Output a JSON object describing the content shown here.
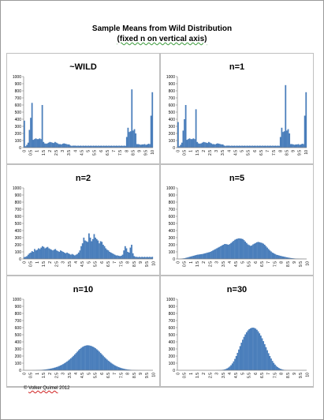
{
  "header": {
    "title": "Sample Means from Wild Distribution",
    "subtitle": "(fixed n on vertical axis)"
  },
  "footer": {
    "copyright_prefix": "© ",
    "copyright_name": "Volker Quimel",
    "copyright_year": " 2012"
  },
  "colors": {
    "bar": "#4a7ebb",
    "panel_border": "#bfbfbf"
  },
  "chart_data": [
    {
      "type": "bar",
      "title": "~WILD",
      "ylim": [
        0,
        1000
      ],
      "yticks": [
        0,
        100,
        200,
        300,
        400,
        500,
        600,
        700,
        800,
        900,
        1000
      ],
      "xticks": [
        "0",
        "0.5",
        "1",
        "1.5",
        "2",
        "2.5",
        "3",
        "3.5",
        "4",
        "4.5",
        "5",
        "5.5",
        "6",
        "6.5",
        "7",
        "7.5",
        "8",
        "8.5",
        "9",
        "9.5",
        "10"
      ],
      "x_start": 0,
      "bin_width": 0.1,
      "values": [
        380,
        20,
        40,
        70,
        250,
        420,
        630,
        110,
        120,
        130,
        120,
        120,
        130,
        120,
        600,
        80,
        60,
        55,
        60,
        70,
        80,
        75,
        70,
        65,
        80,
        70,
        60,
        50,
        50,
        45,
        55,
        60,
        55,
        50,
        45,
        45,
        30,
        25,
        28,
        28,
        28,
        25,
        28,
        25,
        28,
        25,
        28,
        25,
        28,
        25,
        28,
        25,
        28,
        25,
        28,
        25,
        28,
        25,
        28,
        25,
        28,
        25,
        28,
        25,
        28,
        25,
        28,
        25,
        28,
        25,
        28,
        25,
        28,
        25,
        28,
        25,
        28,
        25,
        28,
        25,
        150,
        280,
        220,
        230,
        820,
        240,
        260,
        200,
        50,
        50,
        45,
        40,
        45,
        45,
        50,
        40,
        45,
        55,
        50,
        450,
        780
      ]
    },
    {
      "type": "bar",
      "title": "n=1",
      "ylim": [
        0,
        1000
      ],
      "yticks": [
        0,
        100,
        200,
        300,
        400,
        500,
        600,
        700,
        800,
        900,
        1000
      ],
      "xticks": [
        "0",
        "0.5",
        "1",
        "1.5",
        "2",
        "2.5",
        "3",
        "3.5",
        "4",
        "4.5",
        "5",
        "5.5",
        "6",
        "6.5",
        "7",
        "7.5",
        "8",
        "8.5",
        "9",
        "9.5",
        "10"
      ],
      "x_start": 0,
      "bin_width": 0.1,
      "values": [
        360,
        20,
        40,
        70,
        240,
        400,
        600,
        110,
        120,
        130,
        120,
        120,
        130,
        120,
        540,
        80,
        60,
        55,
        60,
        70,
        80,
        75,
        70,
        65,
        80,
        70,
        60,
        50,
        50,
        45,
        55,
        60,
        55,
        50,
        45,
        45,
        30,
        25,
        28,
        28,
        28,
        25,
        28,
        25,
        28,
        25,
        28,
        25,
        28,
        25,
        28,
        25,
        28,
        25,
        28,
        25,
        28,
        25,
        28,
        25,
        28,
        25,
        28,
        25,
        28,
        25,
        28,
        25,
        28,
        25,
        28,
        25,
        28,
        25,
        28,
        25,
        28,
        25,
        28,
        25,
        150,
        280,
        220,
        230,
        880,
        240,
        260,
        200,
        50,
        50,
        45,
        40,
        45,
        45,
        50,
        40,
        45,
        55,
        50,
        450,
        780
      ]
    },
    {
      "type": "bar",
      "title": "n=2",
      "ylim": [
        0,
        1000
      ],
      "yticks": [
        0,
        100,
        200,
        300,
        400,
        500,
        600,
        700,
        800,
        900,
        1000
      ],
      "xticks": [
        "0",
        "0.5",
        "1",
        "1.5",
        "2",
        "2.5",
        "3",
        "3.5",
        "4",
        "4.5",
        "5",
        "5.5",
        "6",
        "6.5",
        "7",
        "7.5",
        "8",
        "8.5",
        "9",
        "9.5",
        "10"
      ],
      "x_start": 0,
      "bin_width": 0.1,
      "values": [
        25,
        30,
        40,
        60,
        80,
        90,
        110,
        100,
        140,
        120,
        130,
        150,
        140,
        160,
        180,
        170,
        150,
        160,
        170,
        150,
        140,
        130,
        120,
        130,
        140,
        120,
        110,
        100,
        120,
        110,
        100,
        90,
        80,
        90,
        80,
        70,
        60,
        70,
        60,
        50,
        60,
        70,
        90,
        120,
        180,
        220,
        300,
        260,
        250,
        240,
        360,
        300,
        250,
        280,
        350,
        300,
        280,
        260,
        220,
        250,
        240,
        200,
        180,
        150,
        130,
        120,
        100,
        90,
        80,
        70,
        60,
        50,
        50,
        45,
        40,
        45,
        60,
        120,
        180,
        150,
        100,
        90,
        160,
        200,
        80,
        40,
        30,
        30,
        25,
        30,
        25,
        30,
        25,
        30,
        25,
        30,
        25,
        30,
        25,
        30
      ]
    },
    {
      "type": "bar",
      "title": "n=5",
      "ylim": [
        0,
        1000
      ],
      "yticks": [
        0,
        100,
        200,
        300,
        400,
        500,
        600,
        700,
        800,
        900,
        1000
      ],
      "xticks": [
        "0",
        "0.5",
        "1",
        "1.5",
        "2",
        "2.5",
        "3",
        "3.5",
        "4",
        "4.5",
        "5",
        "5.5",
        "6",
        "6.5",
        "7",
        "7.5",
        "8",
        "8.5",
        "9",
        "9.5",
        "10"
      ],
      "x_start": 0,
      "bin_width": 0.1,
      "values": [
        0,
        0,
        2,
        5,
        8,
        10,
        15,
        20,
        25,
        30,
        35,
        40,
        45,
        50,
        55,
        60,
        62,
        65,
        68,
        70,
        75,
        80,
        85,
        90,
        95,
        100,
        110,
        120,
        130,
        140,
        150,
        160,
        170,
        180,
        190,
        200,
        210,
        210,
        205,
        200,
        210,
        225,
        240,
        255,
        270,
        280,
        285,
        290,
        288,
        285,
        280,
        265,
        245,
        225,
        205,
        195,
        185,
        190,
        205,
        215,
        225,
        235,
        240,
        235,
        230,
        225,
        215,
        200,
        180,
        160,
        140,
        120,
        105,
        90,
        80,
        70,
        60,
        55,
        50,
        45,
        40,
        36,
        32,
        28,
        24,
        20,
        17,
        14,
        11,
        9,
        7,
        5,
        4,
        3,
        2,
        2,
        1,
        1,
        0,
        0
      ]
    },
    {
      "type": "bar",
      "title": "n=10",
      "ylim": [
        0,
        1000
      ],
      "yticks": [
        0,
        100,
        200,
        300,
        400,
        500,
        600,
        700,
        800,
        900,
        1000
      ],
      "xticks": [
        "0",
        "0.5",
        "1",
        "1.5",
        "2",
        "2.5",
        "3",
        "3.5",
        "4",
        "4.5",
        "5",
        "5.5",
        "6",
        "6.5",
        "7",
        "7.5",
        "8",
        "8.5",
        "9",
        "9.5",
        "10"
      ],
      "x_start": 0,
      "bin_width": 0.1,
      "values": [
        0,
        0,
        0,
        0,
        0,
        0,
        0,
        1,
        1,
        2,
        3,
        4,
        5,
        6,
        7,
        9,
        11,
        13,
        16,
        19,
        22,
        26,
        30,
        35,
        40,
        46,
        52,
        60,
        68,
        77,
        87,
        98,
        110,
        123,
        137,
        152,
        168,
        185,
        203,
        222,
        242,
        262,
        282,
        300,
        315,
        328,
        338,
        345,
        350,
        352,
        350,
        346,
        340,
        332,
        322,
        310,
        296,
        280,
        262,
        243,
        224,
        205,
        186,
        168,
        151,
        135,
        120,
        106,
        93,
        81,
        70,
        60,
        52,
        44,
        37,
        31,
        26,
        21,
        17,
        14,
        11,
        9,
        7,
        5,
        4,
        3,
        2,
        2,
        1,
        1,
        0,
        0,
        0,
        0,
        0,
        0,
        0,
        0,
        0,
        0
      ]
    },
    {
      "type": "bar",
      "title": "n=30",
      "ylim": [
        0,
        1000
      ],
      "yticks": [
        0,
        100,
        200,
        300,
        400,
        500,
        600,
        700,
        800,
        900,
        1000
      ],
      "xticks": [
        "0",
        "0.5",
        "1",
        "1.5",
        "2",
        "2.5",
        "3",
        "3.5",
        "4",
        "4.5",
        "5",
        "5.5",
        "6",
        "6.5",
        "7",
        "7.5",
        "8",
        "8.5",
        "9",
        "9.5",
        "10"
      ],
      "x_start": 0,
      "bin_width": 0.1,
      "values": [
        0,
        0,
        0,
        0,
        0,
        0,
        0,
        0,
        0,
        0,
        0,
        0,
        0,
        0,
        0,
        0,
        0,
        0,
        0,
        0,
        0,
        0,
        0,
        0,
        0,
        0,
        0,
        0,
        0,
        0,
        1,
        1,
        2,
        3,
        5,
        8,
        12,
        18,
        27,
        38,
        53,
        72,
        96,
        125,
        160,
        200,
        245,
        292,
        340,
        388,
        430,
        470,
        505,
        535,
        560,
        578,
        590,
        598,
        600,
        596,
        586,
        570,
        548,
        520,
        488,
        450,
        410,
        368,
        325,
        282,
        240,
        200,
        165,
        132,
        104,
        80,
        60,
        44,
        32,
        22,
        15,
        10,
        6,
        4,
        2,
        1,
        1,
        0,
        0,
        0,
        0,
        0,
        0,
        0,
        0,
        0,
        0,
        0,
        0,
        0
      ]
    }
  ]
}
